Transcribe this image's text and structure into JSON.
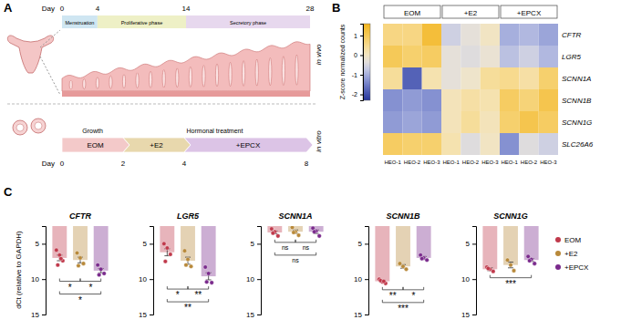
{
  "panel_labels": [
    "A",
    "B",
    "C"
  ],
  "diagram": {
    "in_vivo": {
      "label": "in vivo",
      "day_label": "Day",
      "days": [
        0,
        4,
        14,
        28
      ],
      "phases": [
        "Menstruation",
        "Proliferative phase",
        "Secretory phase"
      ]
    },
    "in_vitro": {
      "label": "in vitro",
      "day_label": "Day",
      "days": [
        0,
        2,
        4,
        8
      ],
      "stages": [
        "Growth",
        "Hormonal treatment"
      ],
      "conditions": [
        "EOM",
        "+E2",
        "+EPCX"
      ]
    }
  },
  "chart_data": [
    {
      "type": "heatmap",
      "groups": [
        "EOM",
        "+E2",
        "+EPCX"
      ],
      "x": [
        "HEO-1",
        "HEO-2",
        "HEO-3",
        "HEO-1",
        "HEO-2",
        "HEO-3",
        "HEO-1",
        "HEO-2",
        "HEO-3"
      ],
      "y": [
        "CFTR",
        "LGR5",
        "SCNN1A",
        "SCNN1B",
        "SCNN1G",
        "SLC26A6"
      ],
      "cells": [
        [
          0.6,
          0.6,
          1.3,
          -0.6,
          -0.3,
          0.0,
          -1.0,
          -0.9,
          -1.1
        ],
        [
          1.0,
          0.8,
          0.9,
          -0.3,
          -0.4,
          -0.2,
          -0.8,
          -0.6,
          -0.9
        ],
        [
          0.4,
          -1.8,
          0.2,
          -0.3,
          -0.1,
          0.4,
          0.5,
          0.3,
          0.8
        ],
        [
          -1.3,
          -1.2,
          -1.3,
          0.1,
          0.3,
          0.2,
          0.9,
          0.7,
          1.1
        ],
        [
          -1.2,
          -1.1,
          -1.2,
          0.1,
          0.4,
          0.1,
          0.8,
          1.1,
          0.9
        ],
        [
          0.9,
          0.8,
          0.8,
          0.2,
          -0.4,
          0.0,
          -1.3,
          -0.4,
          -0.6
        ]
      ],
      "colorbar": {
        "label": "Z-score normalized counts",
        "range": [
          -2.3,
          1.6
        ],
        "ticks": [
          1,
          0,
          -1,
          -2
        ]
      }
    },
    {
      "type": "bar",
      "title": "CFTR",
      "y_label": "dCt (relative to GAPDH)",
      "ylim": [
        15,
        2.5
      ],
      "yticks": [
        5,
        10,
        15
      ],
      "series": [
        {
          "color": "#c0394b",
          "values": [
            7.0
          ],
          "error": [
            0.4
          ],
          "points": [
            [
              5.9,
              6.6,
              7.4,
              8.0,
              7.1
            ]
          ]
        },
        {
          "color": "#b8893a",
          "values": [
            7.3
          ],
          "error": [
            0.4
          ],
          "points": [
            [
              6.3,
              7.0,
              7.8,
              8.1
            ]
          ]
        },
        {
          "color": "#7a2a8c",
          "values": [
            8.8
          ],
          "error": [
            0.3
          ],
          "points": [
            [
              8.0,
              8.6,
              9.2,
              9.4
            ]
          ]
        }
      ],
      "annotations": [
        {
          "between": [
            0,
            1
          ],
          "label": "*"
        },
        {
          "between": [
            1,
            2
          ],
          "label": "*"
        },
        {
          "between": [
            0,
            2
          ],
          "label": "*"
        }
      ]
    },
    {
      "type": "bar",
      "title": "LGR5",
      "ylim": [
        15,
        2.5
      ],
      "yticks": [
        5,
        10,
        15
      ],
      "series": [
        {
          "color": "#c0394b",
          "values": [
            6.2
          ],
          "error": [
            0.5
          ],
          "points": [
            [
              5.0,
              5.6,
              6.5,
              7.5
            ]
          ]
        },
        {
          "color": "#b8893a",
          "values": [
            7.4
          ],
          "error": [
            0.5
          ],
          "points": [
            [
              6.0,
              7.2,
              8.2,
              8.0
            ]
          ]
        },
        {
          "color": "#7a2a8c",
          "values": [
            9.6
          ],
          "error": [
            0.5
          ],
          "points": [
            [
              8.3,
              9.2,
              10.5,
              10.4
            ]
          ]
        }
      ],
      "annotations": [
        {
          "between": [
            0,
            1
          ],
          "label": "*"
        },
        {
          "between": [
            1,
            2
          ],
          "label": "**"
        },
        {
          "between": [
            0,
            2
          ],
          "label": "**"
        }
      ]
    },
    {
      "type": "bar",
      "title": "SCNN1A",
      "ylim": [
        15,
        2.5
      ],
      "yticks": [
        5,
        10,
        15
      ],
      "series": [
        {
          "color": "#c0394b",
          "values": [
            3.4
          ],
          "error": [
            0.2
          ],
          "points": [
            [
              2.9,
              3.3,
              3.9,
              3.5
            ]
          ]
        },
        {
          "color": "#b8893a",
          "values": [
            3.3
          ],
          "error": [
            0.25
          ],
          "points": [
            [
              2.7,
              3.3,
              3.8,
              3.4
            ]
          ]
        },
        {
          "color": "#7a2a8c",
          "values": [
            3.3
          ],
          "error": [
            0.25
          ],
          "points": [
            [
              2.8,
              3.2,
              3.9,
              3.3
            ]
          ]
        }
      ],
      "annotations": [
        {
          "between": [
            0,
            1
          ],
          "label": "ns"
        },
        {
          "between": [
            1,
            2
          ],
          "label": "ns"
        },
        {
          "between": [
            0,
            2
          ],
          "label": "ns"
        }
      ]
    },
    {
      "type": "bar",
      "title": "SCNN1B",
      "ylim": [
        15,
        2.5
      ],
      "yticks": [
        5,
        10,
        15
      ],
      "series": [
        {
          "color": "#c0394b",
          "values": [
            10.3
          ],
          "error": [
            0.15
          ],
          "points": [
            [
              10.0,
              10.4,
              10.6,
              10.2,
              10.3
            ]
          ]
        },
        {
          "color": "#b8893a",
          "values": [
            8.2
          ],
          "error": [
            0.25
          ],
          "points": [
            [
              7.8,
              8.2,
              8.6
            ]
          ]
        },
        {
          "color": "#7a2a8c",
          "values": [
            7.0
          ],
          "error": [
            0.2
          ],
          "points": [
            [
              6.6,
              7.0,
              7.3,
              7.1
            ]
          ]
        }
      ],
      "annotations": [
        {
          "between": [
            0,
            1
          ],
          "label": "**"
        },
        {
          "between": [
            1,
            2
          ],
          "label": "*"
        },
        {
          "between": [
            0,
            2
          ],
          "label": "***"
        }
      ]
    },
    {
      "type": "bar",
      "title": "SCNN1G",
      "ylim": [
        15,
        2.5
      ],
      "yticks": [
        5,
        10,
        15
      ],
      "legend": "right",
      "series": [
        {
          "name": "EOM",
          "color": "#c0394b",
          "values": [
            8.6
          ],
          "error": [
            0.2
          ],
          "points": [
            [
              8.3,
              8.6,
              8.9,
              8.5
            ]
          ]
        },
        {
          "name": "+E2",
          "color": "#b8893a",
          "values": [
            8.0
          ],
          "error": [
            0.4
          ],
          "points": [
            [
              7.3,
              8.0,
              8.8
            ]
          ]
        },
        {
          "name": "+EPCX",
          "color": "#7a2a8c",
          "values": [
            7.3
          ],
          "error": [
            0.2
          ],
          "points": [
            [
              6.8,
              7.2,
              7.8,
              7.4
            ]
          ]
        }
      ],
      "annotations": [
        {
          "between": [
            0,
            2
          ],
          "label": "***"
        }
      ]
    }
  ]
}
